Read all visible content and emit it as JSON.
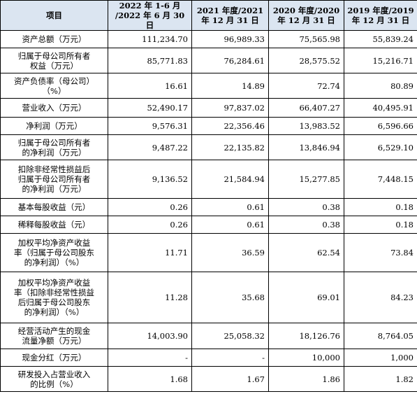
{
  "header": {
    "col0": "项目",
    "col1": [
      "2022 年 1-6 月",
      "/2022 年 6 月 30 日"
    ],
    "col2": [
      "2021 年度/2021",
      "年 12 月 31 日"
    ],
    "col3": [
      "2020 年度/2020",
      "年 12 月 31 日"
    ],
    "col4": [
      "2019 年度/2019",
      "年 12 月 31 日"
    ]
  },
  "rows": [
    {
      "label": [
        "资产总额（万元）"
      ],
      "values": [
        "111,234.70",
        "96,989.33",
        "75,565.98",
        "55,839.24"
      ]
    },
    {
      "label": [
        "归属于母公司所有者",
        "权益（万元）"
      ],
      "values": [
        "85,771.83",
        "76,284.61",
        "28,575.52",
        "15,216.71"
      ]
    },
    {
      "label": [
        "资产负债率（母公司）",
        "（%）"
      ],
      "values": [
        "16.61",
        "14.89",
        "72.74",
        "80.89"
      ]
    },
    {
      "label": [
        "营业收入（万元）"
      ],
      "values": [
        "52,490.17",
        "97,837.02",
        "66,407.27",
        "40,495.91"
      ]
    },
    {
      "label": [
        "净利润（万元）"
      ],
      "values": [
        "9,576.31",
        "22,356.46",
        "13,983.52",
        "6,596.66"
      ]
    },
    {
      "label": [
        "归属于母公司所有者",
        "的净利润（万元）"
      ],
      "values": [
        "9,487.22",
        "22,135.82",
        "13,846.94",
        "6,529.10"
      ]
    },
    {
      "label": [
        "扣除非经常性损益后",
        "归属于母公司所有者",
        "的净利润（万元）"
      ],
      "values": [
        "9,136.52",
        "21,584.94",
        "15,277.85",
        "7,448.15"
      ]
    },
    {
      "label": [
        "基本每股收益（元）"
      ],
      "values": [
        "0.26",
        "0.61",
        "0.38",
        "0.18"
      ]
    },
    {
      "label": [
        "稀释每股收益（元）"
      ],
      "values": [
        "0.26",
        "0.61",
        "0.38",
        "0.18"
      ]
    },
    {
      "label": [
        "加权平均净资产收益",
        "率（归属于母公司股东",
        "的净利润）（%）"
      ],
      "values": [
        "11.71",
        "36.59",
        "62.54",
        "73.84"
      ]
    },
    {
      "label": [
        "加权平均净资产收益",
        "率（扣除非经常性损益",
        "后归属于母公司股东",
        "的净利润）（%）"
      ],
      "values": [
        "11.28",
        "35.68",
        "69.01",
        "84.23"
      ]
    },
    {
      "label": [
        "经营活动产生的现金",
        "流量净额（万元）"
      ],
      "values": [
        "14,003.90",
        "25,058.32",
        "18,126.76",
        "8,764.05"
      ]
    },
    {
      "label": [
        "现金分红（万元）"
      ],
      "values": [
        "-",
        "-",
        "10,000",
        "1,000"
      ]
    },
    {
      "label": [
        "研发投入占营业收入",
        "的比例（%）"
      ],
      "values": [
        "1.68",
        "1.67",
        "1.86",
        "1.82"
      ]
    }
  ]
}
